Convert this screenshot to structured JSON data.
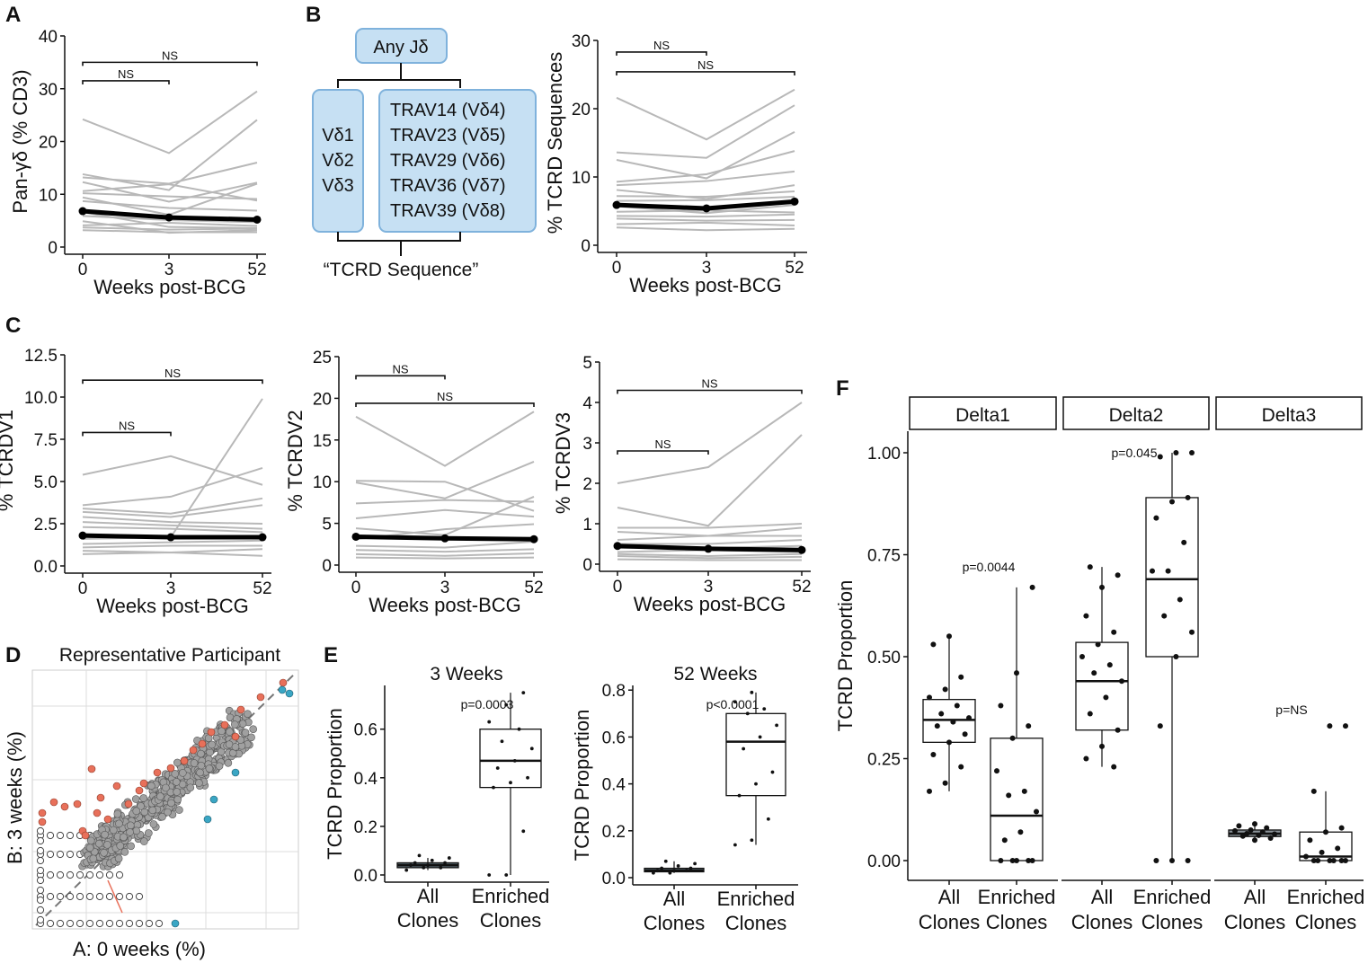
{
  "panel_labels": [
    "A",
    "B",
    "C",
    "D",
    "E",
    "F"
  ],
  "diagram": {
    "top_box": "Any Jδ",
    "left_box": [
      "Vδ1",
      "Vδ2",
      "Vδ3"
    ],
    "right_box": [
      "TRAV14 (Vδ4)",
      "TRAV23 (Vδ5)",
      "TRAV29 (Vδ6)",
      "TRAV36 (Vδ7)",
      "TRAV39 (Vδ8)"
    ],
    "caption": "“TCRD Sequence”"
  },
  "scatter": {
    "title": "Representative Participant",
    "xlabel": "A: 0 weeks (%)",
    "ylabel": "B: 3 weeks (%)",
    "colors": {
      "enriched": "#e8705a",
      "depleted": "#3aa6c4",
      "common": "#a0a0a0",
      "unique": "#ffffff"
    }
  },
  "chart_data": [
    {
      "id": "A",
      "type": "line",
      "x": [
        0,
        3,
        52
      ],
      "xlabels": [
        "0",
        "3",
        "52"
      ],
      "xlabel": "Weeks post-BCG",
      "ylabel": "Pan-γδ (% CD3)",
      "ylim": [
        0,
        40
      ],
      "yticks": [
        0,
        10,
        20,
        30,
        40
      ],
      "ytick_labels": [
        "0",
        "10",
        "20",
        "30",
        "40"
      ],
      "mean": [
        6.8,
        5.6,
        5.2
      ],
      "participants": [
        [
          24.2,
          17.8,
          29.5
        ],
        [
          13.8,
          10.8,
          24.1
        ],
        [
          13.2,
          12.0,
          16.0
        ],
        [
          12.3,
          8.6,
          12.2
        ],
        [
          10.6,
          11.9,
          8.8
        ],
        [
          10.2,
          9.6,
          9.1
        ],
        [
          9.4,
          6.1,
          12.0
        ],
        [
          8.7,
          7.4,
          6.9
        ],
        [
          6.6,
          3.8,
          3.6
        ],
        [
          5.9,
          5.1,
          4.7
        ],
        [
          4.9,
          2.7,
          3.2
        ],
        [
          4.1,
          4.6,
          4.0
        ],
        [
          3.7,
          3.3,
          3.5
        ],
        [
          3.2,
          2.8,
          2.8
        ]
      ],
      "brackets": [
        {
          "from": 0,
          "to": 52,
          "label": "NS",
          "y": 35
        },
        {
          "from": 0,
          "to": 3,
          "label": "NS",
          "y": 31.5
        }
      ]
    },
    {
      "id": "B",
      "type": "line",
      "x": [
        0,
        3,
        52
      ],
      "xlabels": [
        "0",
        "3",
        "52"
      ],
      "xlabel": "Weeks post-BCG",
      "ylabel": "% TCRD Sequences",
      "ylim": [
        0,
        30
      ],
      "yticks": [
        0,
        10,
        20,
        30
      ],
      "ytick_labels": [
        "0",
        "10",
        "20",
        "30"
      ],
      "mean": [
        5.9,
        5.4,
        6.4
      ],
      "participants": [
        [
          21.6,
          15.5,
          22.8
        ],
        [
          13.6,
          12.8,
          20.5
        ],
        [
          12.5,
          9.8,
          16.6
        ],
        [
          9.3,
          10.4,
          13.8
        ],
        [
          8.8,
          9.4,
          10.8
        ],
        [
          8.1,
          6.8,
          8.8
        ],
        [
          7.2,
          7.1,
          7.9
        ],
        [
          6.5,
          6.6,
          7.1
        ],
        [
          5.7,
          4.7,
          5.9
        ],
        [
          4.9,
          5.1,
          4.8
        ],
        [
          4.3,
          4.2,
          4.5
        ],
        [
          3.9,
          3.6,
          3.7
        ],
        [
          3.1,
          3.3,
          2.9
        ],
        [
          2.6,
          2.2,
          2.4
        ]
      ],
      "brackets": [
        {
          "from": 0,
          "to": 3,
          "label": "NS",
          "y": 28.3
        },
        {
          "from": 0,
          "to": 52,
          "label": "NS",
          "y": 25.4
        }
      ]
    },
    {
      "id": "C1",
      "type": "line",
      "x": [
        0,
        3,
        52
      ],
      "xlabels": [
        "0",
        "3",
        "52"
      ],
      "xlabel": "Weeks post-BCG",
      "ylabel": "% TCRDV1",
      "ylim": [
        0,
        12.5
      ],
      "yticks": [
        0,
        2.5,
        5,
        7.5,
        10,
        12.5
      ],
      "ytick_labels": [
        "0.0",
        "2.5",
        "5.0",
        "7.5",
        "10.0",
        "12.5"
      ],
      "mean": [
        1.8,
        1.7,
        1.7
      ],
      "participants": [
        [
          5.4,
          6.5,
          4.8
        ],
        [
          3.6,
          4.1,
          5.8
        ],
        [
          3.4,
          3.1,
          4.0
        ],
        [
          3.2,
          2.9,
          3.6
        ],
        [
          2.9,
          2.6,
          2.5
        ],
        [
          2.6,
          2.4,
          2.2
        ],
        [
          2.3,
          2.2,
          2.0
        ],
        [
          1.6,
          1.7,
          9.9
        ],
        [
          1.3,
          1.4,
          1.5
        ],
        [
          1.1,
          1.2,
          1.2
        ],
        [
          0.9,
          0.8,
          1.0
        ],
        [
          0.7,
          0.8,
          0.6
        ]
      ],
      "brackets": [
        {
          "from": 0,
          "to": 52,
          "label": "NS",
          "y": 11.0
        },
        {
          "from": 0,
          "to": 3,
          "label": "NS",
          "y": 7.9
        }
      ]
    },
    {
      "id": "C2",
      "type": "line",
      "x": [
        0,
        3,
        52
      ],
      "xlabels": [
        "0",
        "3",
        "52"
      ],
      "xlabel": "Weeks post-BCG",
      "ylabel": "% TCRDV2",
      "ylim": [
        0,
        25
      ],
      "yticks": [
        0,
        5,
        10,
        15,
        20,
        25
      ],
      "ytick_labels": [
        "0",
        "5",
        "10",
        "15",
        "20",
        "25"
      ],
      "mean": [
        3.4,
        3.2,
        3.1
      ],
      "participants": [
        [
          17.8,
          11.9,
          18.4
        ],
        [
          10.1,
          10.0,
          6.5
        ],
        [
          9.9,
          8.0,
          12.4
        ],
        [
          7.4,
          7.8,
          7.6
        ],
        [
          5.6,
          6.6,
          5.8
        ],
        [
          4.4,
          3.6,
          8.2
        ],
        [
          3.1,
          4.3,
          4.9
        ],
        [
          2.3,
          2.1,
          2.8
        ],
        [
          1.8,
          1.6,
          1.9
        ],
        [
          1.3,
          1.1,
          1.4
        ],
        [
          0.9,
          0.8,
          0.9
        ]
      ],
      "brackets": [
        {
          "from": 0,
          "to": 3,
          "label": "NS",
          "y": 22.7
        },
        {
          "from": 0,
          "to": 52,
          "label": "NS",
          "y": 19.4
        }
      ]
    },
    {
      "id": "C3",
      "type": "line",
      "x": [
        0,
        3,
        52
      ],
      "xlabels": [
        "0",
        "3",
        "52"
      ],
      "xlabel": "Weeks post-BCG",
      "ylabel": "% TCRDV3",
      "ylim": [
        0,
        5
      ],
      "yticks": [
        0,
        1,
        2,
        3,
        4,
        5
      ],
      "ytick_labels": [
        "0",
        "1",
        "2",
        "3",
        "4",
        "5"
      ],
      "mean": [
        0.45,
        0.38,
        0.35
      ],
      "participants": [
        [
          2.0,
          2.4,
          4.0
        ],
        [
          1.4,
          0.95,
          3.2
        ],
        [
          0.9,
          0.9,
          1.0
        ],
        [
          0.8,
          0.7,
          0.9
        ],
        [
          0.6,
          0.7,
          0.7
        ],
        [
          0.5,
          0.5,
          0.6
        ],
        [
          0.4,
          0.4,
          0.45
        ],
        [
          0.3,
          0.35,
          0.3
        ],
        [
          0.25,
          0.2,
          0.25
        ],
        [
          0.2,
          0.15,
          0.18
        ],
        [
          0.12,
          0.1,
          0.1
        ]
      ],
      "brackets": [
        {
          "from": 0,
          "to": 52,
          "label": "NS",
          "y": 4.3
        },
        {
          "from": 0,
          "to": 3,
          "label": "NS",
          "y": 2.8
        }
      ]
    },
    {
      "id": "E1",
      "type": "box",
      "title": "3 Weeks",
      "categories": [
        "All Clones",
        "Enriched Clones"
      ],
      "ylabel": "TCRD Proportion",
      "ylim": [
        0,
        0.78
      ],
      "yticks": [
        0,
        0.2,
        0.4,
        0.6
      ],
      "ytick_labels": [
        "0.0",
        "0.2",
        "0.4",
        "0.6"
      ],
      "pvalue": "p=0.0003",
      "boxes": [
        {
          "q1": 0.03,
          "median": 0.04,
          "q3": 0.05,
          "whisker_low": 0.02,
          "whisker_high": 0.07,
          "points": [
            0.02,
            0.03,
            0.03,
            0.04,
            0.04,
            0.05,
            0.05,
            0.06,
            0.07,
            0.08
          ]
        },
        {
          "q1": 0.36,
          "median": 0.47,
          "q3": 0.6,
          "whisker_low": 0.0,
          "whisker_high": 0.75,
          "points": [
            0.0,
            0.0,
            0.18,
            0.36,
            0.38,
            0.4,
            0.44,
            0.47,
            0.52,
            0.55,
            0.6,
            0.63,
            0.7,
            0.75
          ]
        }
      ]
    },
    {
      "id": "E2",
      "type": "box",
      "title": "52 Weeks",
      "categories": [
        "All Clones",
        "Enriched Clones"
      ],
      "ylabel": "TCRD Proportion",
      "ylim": [
        0,
        0.82
      ],
      "yticks": [
        0,
        0.2,
        0.4,
        0.6,
        0.8
      ],
      "ytick_labels": [
        "0.0",
        "0.2",
        "0.4",
        "0.6",
        "0.8"
      ],
      "pvalue": "p<0.0001",
      "boxes": [
        {
          "q1": 0.025,
          "median": 0.03,
          "q3": 0.04,
          "whisker_low": 0.02,
          "whisker_high": 0.07,
          "points": [
            0.02,
            0.02,
            0.03,
            0.03,
            0.03,
            0.04,
            0.04,
            0.05,
            0.06,
            0.07
          ]
        },
        {
          "q1": 0.35,
          "median": 0.58,
          "q3": 0.7,
          "whisker_low": 0.14,
          "whisker_high": 0.79,
          "points": [
            0.14,
            0.16,
            0.25,
            0.35,
            0.4,
            0.45,
            0.55,
            0.6,
            0.65,
            0.7,
            0.72,
            0.75,
            0.79
          ]
        }
      ]
    },
    {
      "id": "F",
      "type": "box",
      "facets": [
        "Delta1",
        "Delta2",
        "Delta3"
      ],
      "categories": [
        "All Clones",
        "Enriched Clones"
      ],
      "ylabel": "TCRD Proportion",
      "ylim": [
        -0.03,
        1.05
      ],
      "yticks": [
        0,
        0.25,
        0.5,
        0.75,
        1.0
      ],
      "ytick_labels": [
        "0.00",
        "0.25",
        "0.50",
        "0.75",
        "1.00"
      ],
      "pvalues": [
        "p=0.0044",
        "p=0.045",
        "p=NS"
      ],
      "groups": [
        {
          "facet": 0,
          "cat": 0,
          "q1": 0.29,
          "median": 0.345,
          "q3": 0.395,
          "whisker_low": 0.17,
          "whisker_high": 0.55,
          "points": [
            0.17,
            0.19,
            0.23,
            0.26,
            0.29,
            0.31,
            0.33,
            0.34,
            0.35,
            0.36,
            0.38,
            0.4,
            0.42,
            0.45,
            0.53,
            0.55
          ]
        },
        {
          "facet": 0,
          "cat": 1,
          "q1": 0.0,
          "median": 0.11,
          "q3": 0.3,
          "whisker_low": 0.0,
          "whisker_high": 0.67,
          "points": [
            0.0,
            0.0,
            0.0,
            0.0,
            0.0,
            0.05,
            0.07,
            0.12,
            0.16,
            0.17,
            0.22,
            0.3,
            0.33,
            0.38,
            0.46,
            0.67
          ]
        },
        {
          "facet": 1,
          "cat": 0,
          "q1": 0.32,
          "median": 0.44,
          "q3": 0.535,
          "whisker_low": 0.23,
          "whisker_high": 0.72,
          "points": [
            0.23,
            0.25,
            0.28,
            0.32,
            0.36,
            0.4,
            0.44,
            0.46,
            0.48,
            0.5,
            0.53,
            0.56,
            0.6,
            0.67,
            0.7,
            0.72
          ]
        },
        {
          "facet": 1,
          "cat": 1,
          "q1": 0.5,
          "median": 0.69,
          "q3": 0.89,
          "whisker_low": 0.0,
          "whisker_high": 1.0,
          "points": [
            0.0,
            0.0,
            0.0,
            0.33,
            0.5,
            0.56,
            0.6,
            0.64,
            0.71,
            0.71,
            0.78,
            0.84,
            0.88,
            0.89,
            0.99,
            1.0,
            1.0
          ]
        },
        {
          "facet": 2,
          "cat": 0,
          "q1": 0.059,
          "median": 0.066,
          "q3": 0.075,
          "whisker_low": 0.05,
          "whisker_high": 0.09,
          "points": [
            0.05,
            0.055,
            0.06,
            0.062,
            0.065,
            0.066,
            0.07,
            0.073,
            0.075,
            0.08,
            0.085,
            0.09
          ]
        },
        {
          "facet": 2,
          "cat": 1,
          "q1": 0.0,
          "median": 0.01,
          "q3": 0.07,
          "whisker_low": 0.0,
          "whisker_high": 0.17,
          "points": [
            0.0,
            0.0,
            0.0,
            0.0,
            0.0,
            0.0,
            0.01,
            0.02,
            0.03,
            0.05,
            0.07,
            0.08,
            0.17,
            0.33,
            0.33
          ]
        }
      ]
    }
  ]
}
